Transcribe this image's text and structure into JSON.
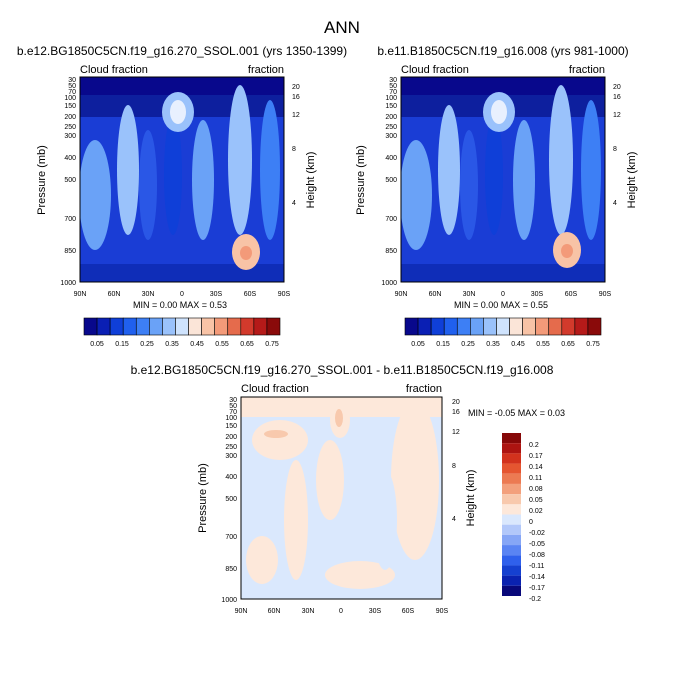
{
  "title": "ANN",
  "colors": {
    "abs_scale": [
      "#08088c",
      "#0a1fb4",
      "#0f3fd8",
      "#2060ee",
      "#3d7ff5",
      "#6aa2f7",
      "#9ac2fb",
      "#cfe3fd",
      "#fbe5d8",
      "#f8c3a6",
      "#f39a79",
      "#e56b4c",
      "#d23a2c",
      "#b51a19",
      "#8a0a0a"
    ],
    "diff_scale": [
      "#08087a",
      "#0a22b0",
      "#1540d0",
      "#2f60ec",
      "#5a84f3",
      "#86a6f6",
      "#b2c8fa",
      "#dae8fd",
      "#fde8da",
      "#f8c9ad",
      "#f3a07c",
      "#ec7a52",
      "#e55530",
      "#d2321d",
      "#ad1411",
      "#860808"
    ]
  },
  "chart_data": [
    {
      "type": "heatmap",
      "title": "b.e12.BG1850C5CN.f19_g16.270_SSOL.001 (yrs 1350-1399)",
      "left_label": "Cloud fraction",
      "right_label": "fraction",
      "xlabel": "",
      "ylabel": "Pressure (mb)",
      "y2label": "Height (km)",
      "x_ticks": [
        "90N",
        "60N",
        "30N",
        "0",
        "30S",
        "60S",
        "90S"
      ],
      "y_ticks": [
        "30",
        "50",
        "70",
        "100",
        "150",
        "200",
        "250",
        "300",
        "400",
        "500",
        "700",
        "850",
        "1000"
      ],
      "y2_ticks": [
        "20",
        "16",
        "12",
        "8",
        "4"
      ],
      "stats": "MIN =  0.00  MAX =  0.53",
      "colorbar_labels": [
        "0.05",
        "0.15",
        "0.25",
        "0.35",
        "0.45",
        "0.55",
        "0.65",
        "0.75"
      ]
    },
    {
      "type": "heatmap",
      "title": "b.e11.B1850C5CN.f19_g16.008 (yrs 981-1000)",
      "left_label": "Cloud fraction",
      "right_label": "fraction",
      "xlabel": "",
      "ylabel": "Pressure (mb)",
      "y2label": "Height (km)",
      "x_ticks": [
        "90N",
        "60N",
        "30N",
        "0",
        "30S",
        "60S",
        "90S"
      ],
      "y_ticks": [
        "30",
        "50",
        "70",
        "100",
        "150",
        "200",
        "250",
        "300",
        "400",
        "500",
        "700",
        "850",
        "1000"
      ],
      "y2_ticks": [
        "20",
        "16",
        "12",
        "8",
        "4"
      ],
      "stats": "MIN =  0.00  MAX =  0.55",
      "colorbar_labels": [
        "0.05",
        "0.15",
        "0.25",
        "0.35",
        "0.45",
        "0.55",
        "0.65",
        "0.75"
      ]
    },
    {
      "type": "heatmap",
      "title": "b.e12.BG1850C5CN.f19_g16.270_SSOL.001 - b.e11.B1850C5CN.f19_g16.008",
      "left_label": "Cloud fraction",
      "right_label": "fraction",
      "xlabel": "",
      "ylabel": "Pressure (mb)",
      "y2label": "Height (km)",
      "x_ticks": [
        "90N",
        "60N",
        "30N",
        "0",
        "30S",
        "60S",
        "90S"
      ],
      "y_ticks": [
        "30",
        "50",
        "70",
        "100",
        "150",
        "200",
        "250",
        "300",
        "400",
        "500",
        "700",
        "850",
        "1000"
      ],
      "y2_ticks": [
        "20",
        "16",
        "12",
        "8",
        "4"
      ],
      "stats": "MIN = -0.05  MAX =  0.03",
      "colorbar_labels": [
        "0.2",
        "0.17",
        "0.14",
        "0.11",
        "0.08",
        "0.05",
        "0.02",
        "0",
        "-0.02",
        "-0.05",
        "-0.08",
        "-0.11",
        "-0.14",
        "-0.17",
        "-0.2"
      ]
    }
  ]
}
